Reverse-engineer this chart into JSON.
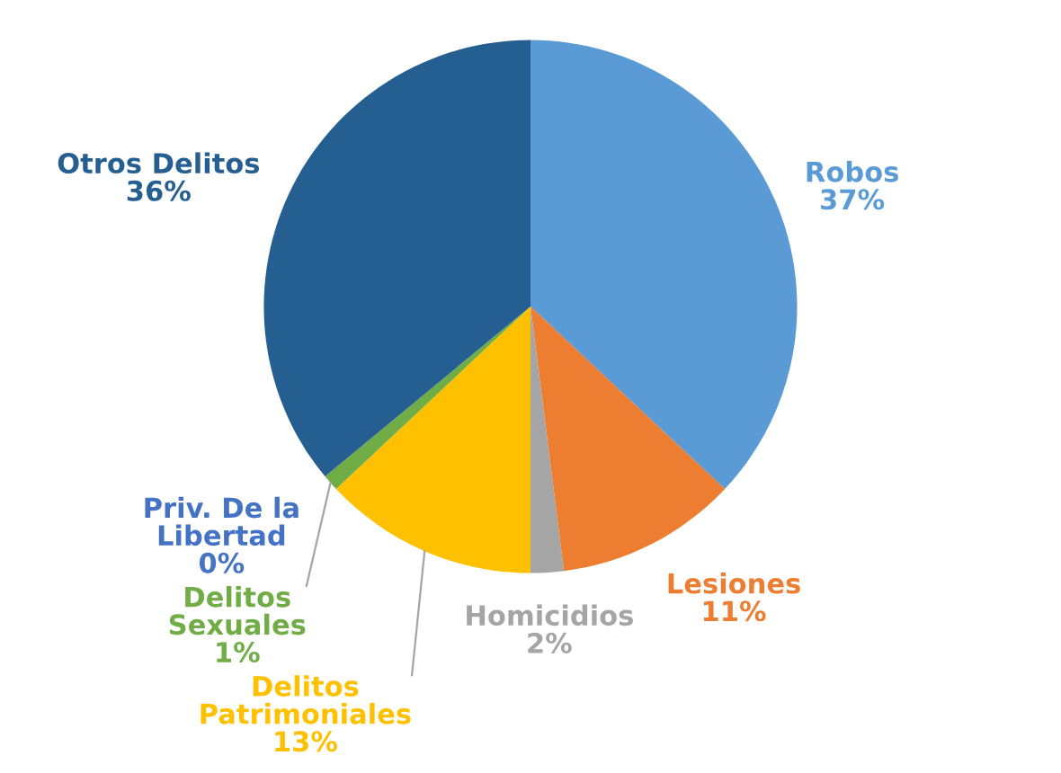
{
  "chart_data": {
    "type": "pie",
    "categories": [
      "Robos",
      "Lesiones",
      "Homicidios",
      "Delitos Patrimoniales",
      "Delitos Sexuales",
      "Priv. De la Libertad",
      "Otros Delitos"
    ],
    "values": [
      37,
      11,
      2,
      13,
      1,
      0,
      36
    ],
    "value_labels": [
      "37%",
      "11%",
      "2%",
      "13%",
      "1%",
      "0%",
      "36%"
    ],
    "colors": [
      "#5b9bd5",
      "#ed7d31",
      "#a5a5a5",
      "#ffc000",
      "#70ad47",
      "#4472c4",
      "#255e91"
    ]
  }
}
